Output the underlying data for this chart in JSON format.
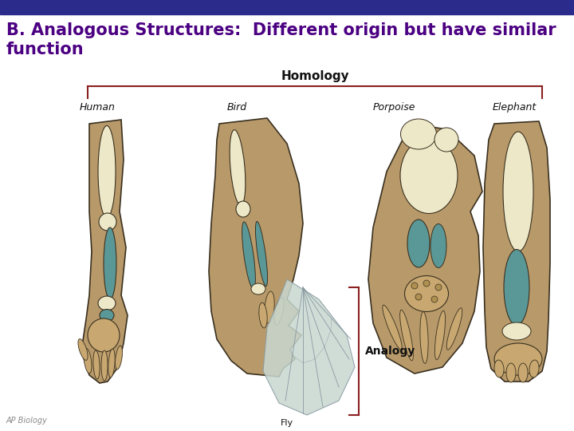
{
  "title_line1": "B. Analogous Structures:  Different origin but have similar",
  "title_line2": "function",
  "title_color": "#4B0082",
  "title_fontsize": 15,
  "title_fontweight": "bold",
  "header_bar_color": "#2B2B8B",
  "background_color": "#FFFFFF",
  "homology_label": "Homology",
  "analogy_label": "Analogy",
  "animal_labels": [
    "Human",
    "Bird",
    "Porpoise",
    "Elephant"
  ],
  "bracket_color": "#8B2020",
  "skin_tan": "#B89A6A",
  "bone_cream": "#EDE8C8",
  "muscle_teal": "#5A9898",
  "finger_tan": "#C8A870",
  "outline_dark": "#3A3020",
  "fly_wing_color": "#C8D8D0",
  "fly_wing_dark": "#8898A0"
}
